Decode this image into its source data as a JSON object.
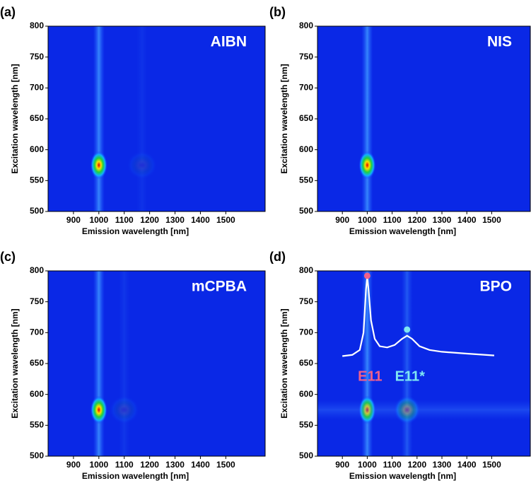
{
  "chart_data": [
    {
      "type": "heatmap",
      "panel": "(a)",
      "label": "AIBN",
      "xlabel": "Emission wavelength [nm]",
      "ylabel": "Excitation wavelength [nm]",
      "xlim": [
        800,
        1655
      ],
      "ylim": [
        500,
        800
      ],
      "xticks": [
        900,
        1000,
        1100,
        1200,
        1300,
        1400,
        1500
      ],
      "yticks": [
        500,
        550,
        600,
        650,
        700,
        750,
        800
      ],
      "x": [
        1000,
        1170
      ],
      "y": [
        575,
        575
      ],
      "values": [
        1,
        0.08
      ]
    },
    {
      "type": "heatmap",
      "panel": "(b)",
      "label": "NIS",
      "xlabel": "Emission wavelength [nm]",
      "ylabel": "Excitation wavelength [nm]",
      "xlim": [
        800,
        1655
      ],
      "ylim": [
        500,
        800
      ],
      "xticks": [
        900,
        1000,
        1100,
        1200,
        1300,
        1400,
        1500
      ],
      "yticks": [
        500,
        550,
        600,
        650,
        700,
        750,
        800
      ],
      "x": [
        1000
      ],
      "y": [
        575
      ],
      "values": [
        1
      ]
    },
    {
      "type": "heatmap",
      "panel": "(c)",
      "label": "mCPBA",
      "xlabel": "Emission wavelength [nm]",
      "ylabel": "Excitation wavelength [nm]",
      "xlim": [
        800,
        1655
      ],
      "ylim": [
        500,
        800
      ],
      "xticks": [
        900,
        1000,
        1100,
        1200,
        1300,
        1400,
        1500
      ],
      "yticks": [
        500,
        550,
        600,
        650,
        700,
        750,
        800
      ],
      "x": [
        1000,
        1100
      ],
      "y": [
        575,
        575
      ],
      "values": [
        1,
        0.1
      ]
    },
    {
      "type": "heatmap",
      "panel": "(d)",
      "label": "BPO",
      "xlabel": "Emission wavelength [nm]",
      "ylabel": "Excitation wavelength [nm]",
      "xlim": [
        800,
        1655
      ],
      "ylim": [
        500,
        800
      ],
      "xticks": [
        900,
        1000,
        1100,
        1200,
        1300,
        1400,
        1500
      ],
      "yticks": [
        500,
        550,
        600,
        650,
        700,
        750,
        800
      ],
      "x": [
        1000,
        1160
      ],
      "y": [
        575,
        575
      ],
      "values": [
        1,
        0.35
      ],
      "spectrum": {
        "x": [
          900,
          940,
          970,
          985,
          995,
          1000,
          1005,
          1015,
          1030,
          1050,
          1080,
          1110,
          1140,
          1160,
          1180,
          1210,
          1250,
          1300,
          1400,
          1510
        ],
        "y": [
          662,
          664,
          672,
          700,
          770,
          790,
          770,
          720,
          690,
          678,
          676,
          680,
          690,
          695,
          690,
          678,
          672,
          669,
          666,
          663
        ]
      },
      "annotations": [
        {
          "text": "E11",
          "x": 1000,
          "y": 792,
          "color": "#f0608a"
        },
        {
          "text": "E11*",
          "x": 1160,
          "y": 705,
          "color": "#7fe8f2"
        }
      ]
    }
  ]
}
